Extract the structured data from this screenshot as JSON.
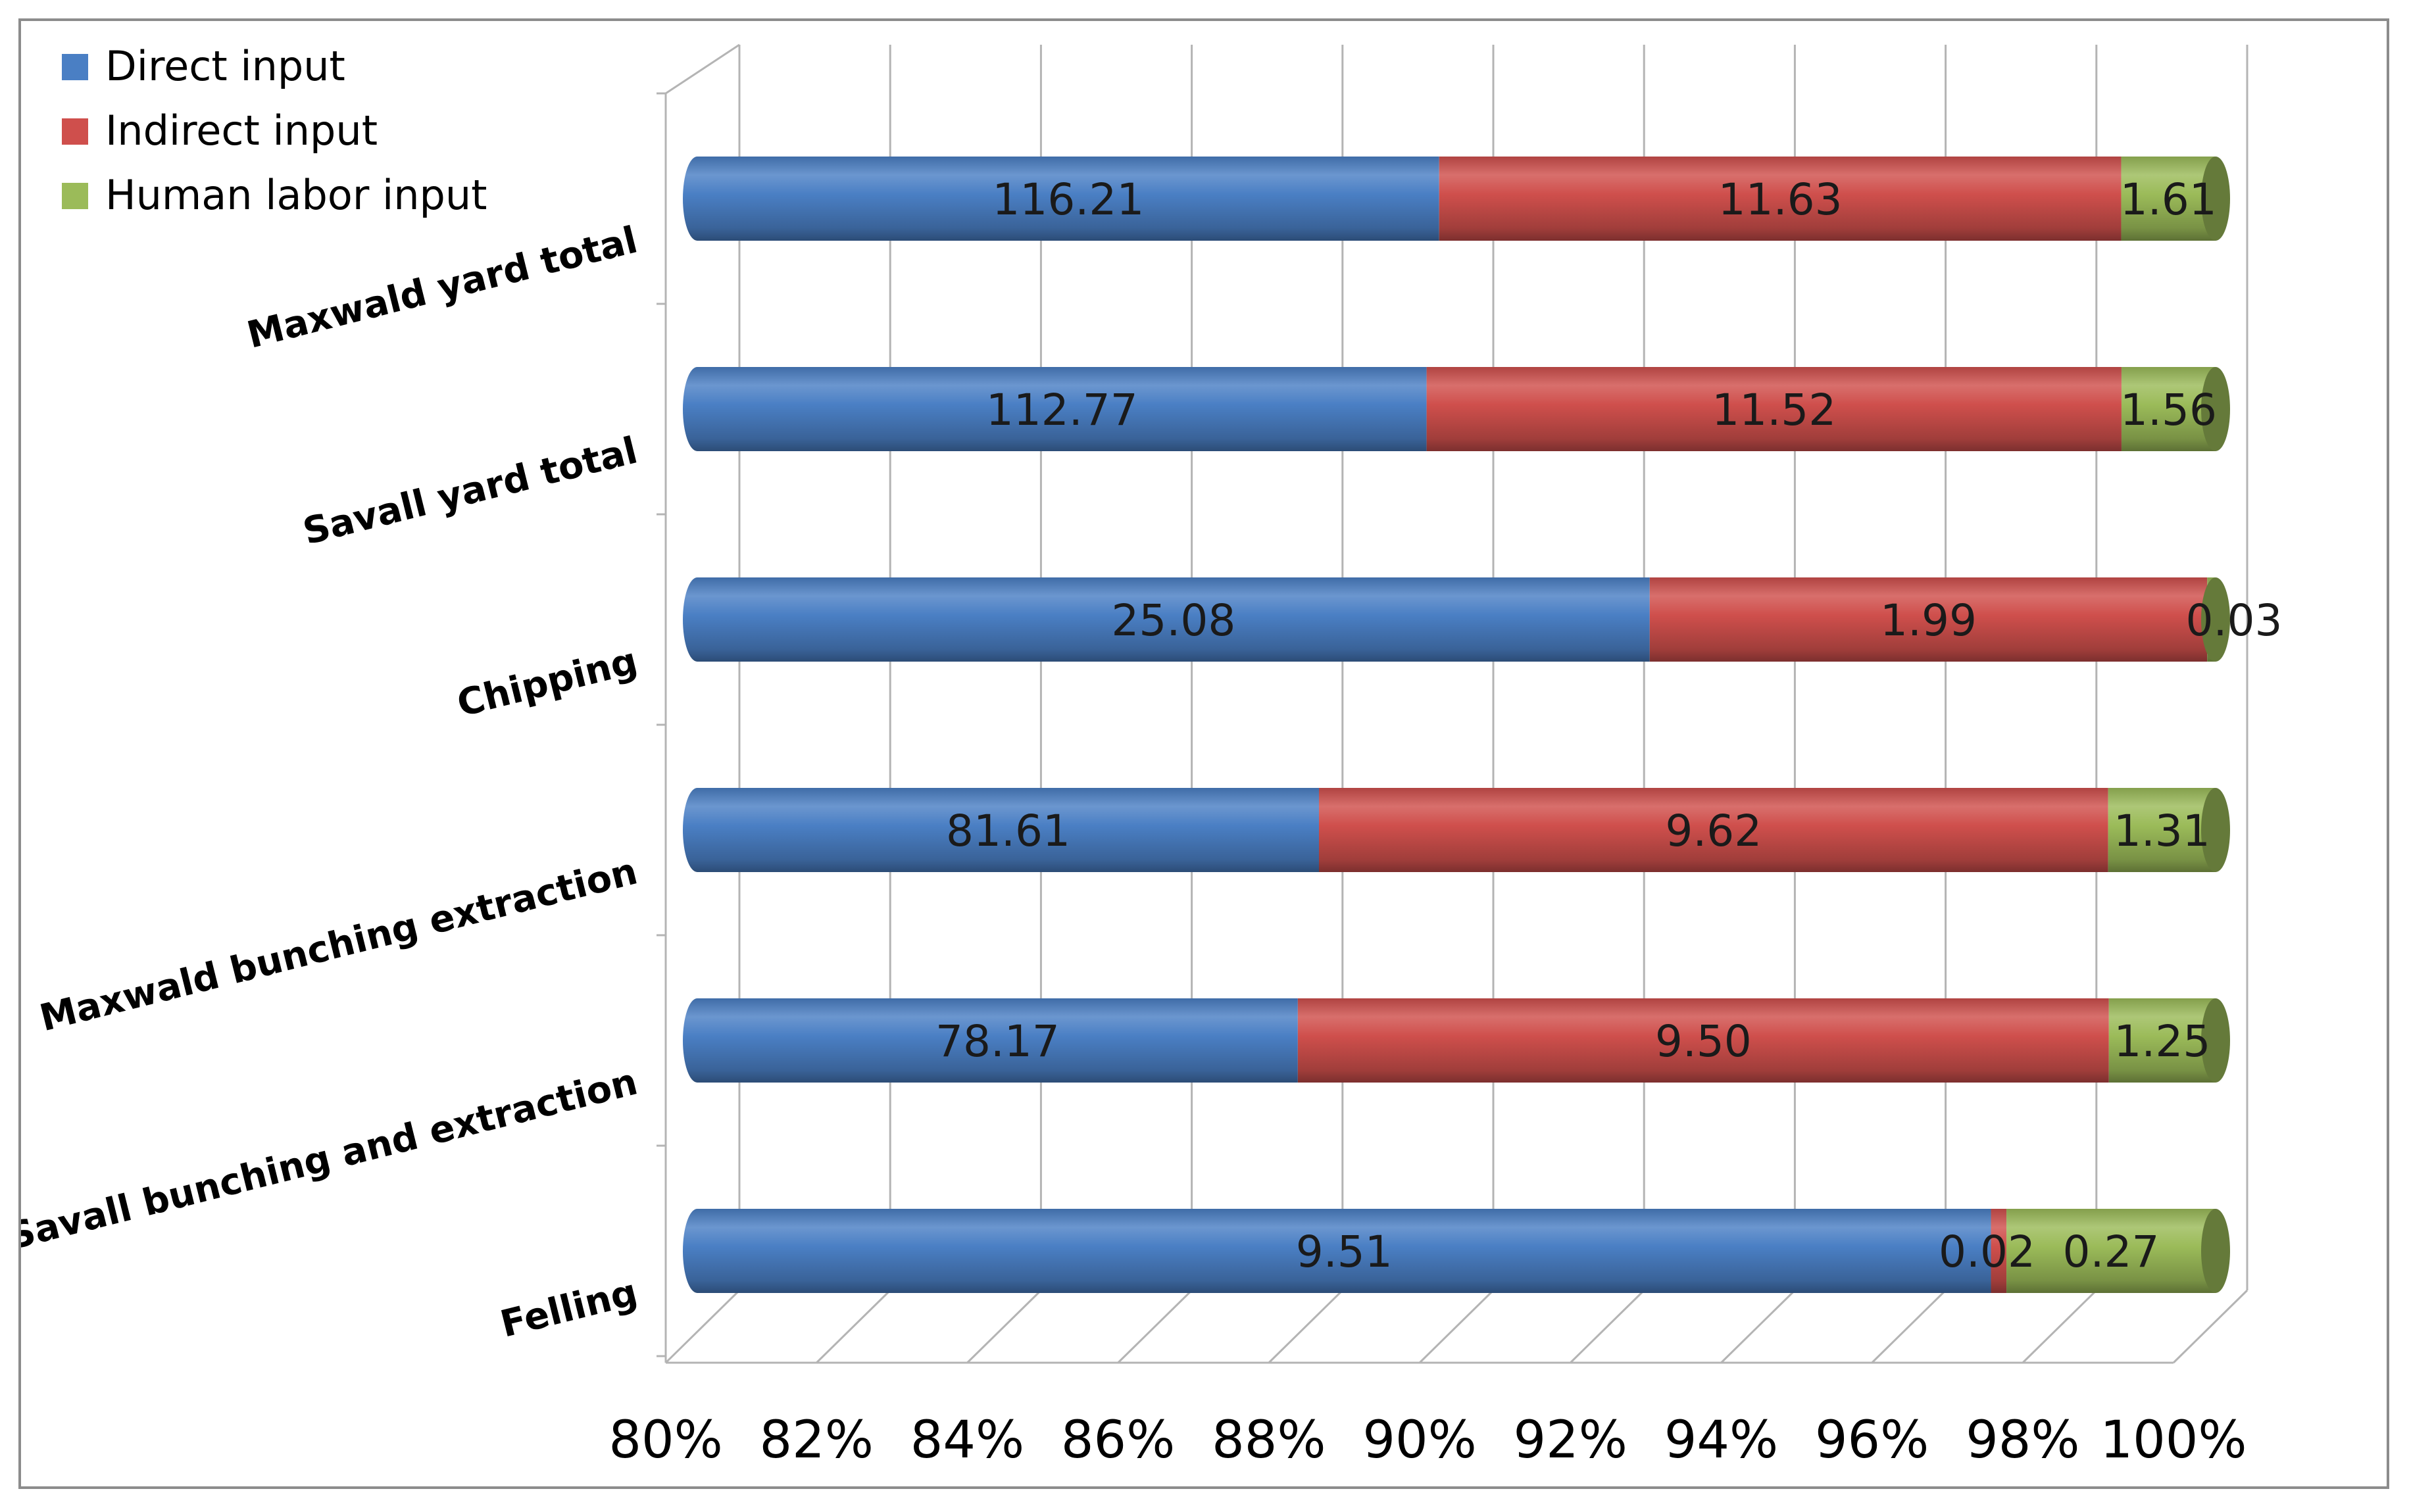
{
  "chart_data": {
    "type": "bar",
    "orientation": "horizontal",
    "stacked": "percent",
    "categories": [
      "Maxwald yard total",
      "Savall yard total",
      "Chipping",
      "Maxwald bunching extraction",
      "Savall bunching and extraction",
      "Felling"
    ],
    "series": [
      {
        "name": "Direct input",
        "color": "#4a7fc4",
        "values": [
          116.21,
          112.77,
          25.08,
          81.61,
          78.17,
          9.51
        ],
        "labels": [
          "116.21",
          "112.77",
          "25.08",
          "81.61",
          "78.17",
          "9.51"
        ]
      },
      {
        "name": "Indirect input",
        "color": "#cf4f4c",
        "values": [
          11.63,
          11.52,
          1.99,
          9.62,
          9.5,
          0.02
        ],
        "labels": [
          "11.63",
          "11.52",
          "1.99",
          "9.62",
          "9.50",
          "0.02"
        ]
      },
      {
        "name": "Human labor input",
        "color": "#9bbb59",
        "values": [
          1.61,
          1.56,
          0.03,
          1.31,
          1.25,
          0.27
        ],
        "labels": [
          "1.61",
          "1.56",
          "0.03",
          "1.31",
          "1.25",
          "0.27"
        ]
      }
    ],
    "xlim": [
      80,
      100
    ],
    "xticks": [
      "80%",
      "82%",
      "84%",
      "86%",
      "88%",
      "90%",
      "92%",
      "94%",
      "96%",
      "98%",
      "100%"
    ],
    "title": "",
    "xlabel": "",
    "ylabel": "",
    "grid": true,
    "legend": "top-left"
  }
}
